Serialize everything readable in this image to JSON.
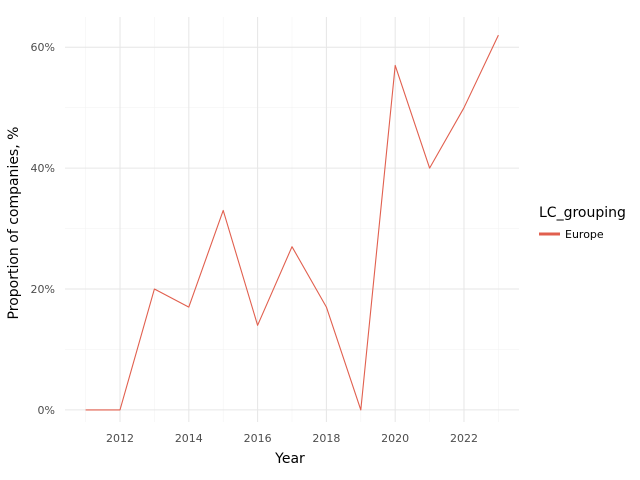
{
  "chart_data": {
    "type": "line",
    "title": "",
    "xlabel": "Year",
    "ylabel": "Proportion of companies, %",
    "x": [
      2011,
      2012,
      2013,
      2014,
      2015,
      2016,
      2017,
      2018,
      2019,
      2020,
      2021,
      2022,
      2023
    ],
    "series": [
      {
        "name": "Europe",
        "color": "#e15f4e",
        "values": [
          0,
          0,
          20,
          17,
          33,
          14,
          27,
          17,
          0,
          57,
          40,
          50,
          62
        ]
      }
    ],
    "xlim": [
      2010.4,
      2023.6
    ],
    "ylim": [
      -2,
      65
    ],
    "x_ticks": [
      2012,
      2014,
      2016,
      2018,
      2020,
      2022
    ],
    "x_tick_labels": [
      "2012",
      "2014",
      "2016",
      "2018",
      "2020",
      "2022"
    ],
    "y_ticks": [
      0,
      20,
      40,
      60
    ],
    "y_tick_labels": [
      "0%",
      "20%",
      "40%",
      "60%"
    ],
    "grid": true,
    "legend": {
      "title": "LC_grouping",
      "position": "right"
    }
  }
}
